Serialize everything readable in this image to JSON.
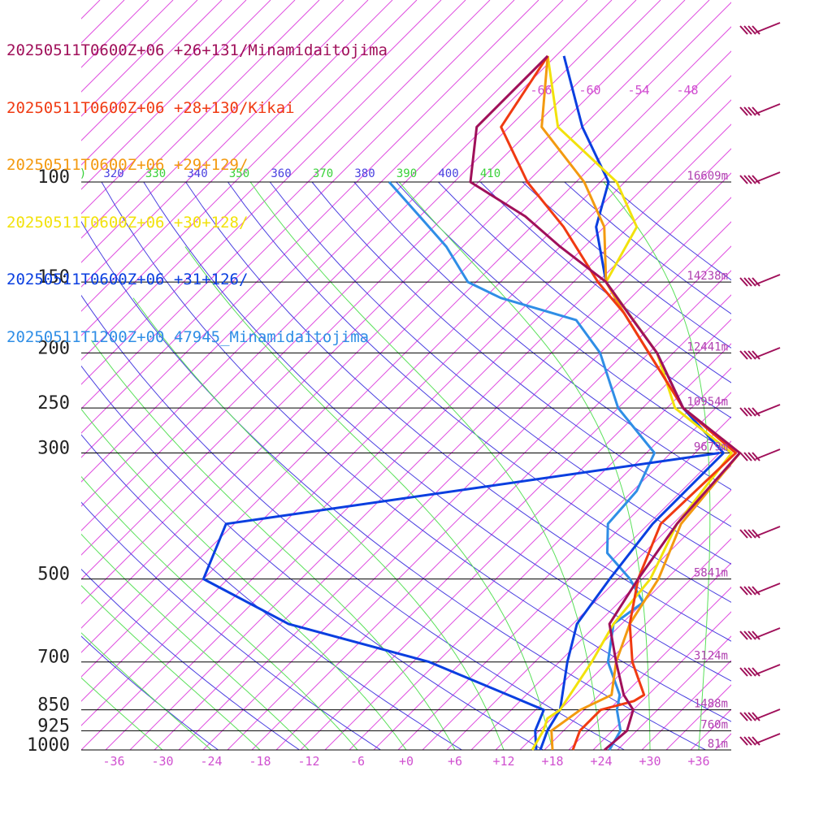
{
  "legend": [
    {
      "label": "20250511T0600Z+06 +26+131/Minamidaitojima",
      "color": "#a0105a"
    },
    {
      "label": "20250511T0600Z+06 +28+130/Kikai",
      "color": "#f03a12"
    },
    {
      "label": "20250511T0600Z+06 +29+129/",
      "color": "#f39a10"
    },
    {
      "label": "20250511T0600Z+06 +30+128/",
      "color": "#f2e20c"
    },
    {
      "label": "20250511T0600Z+06 +31+126/",
      "color": "#0a3fe0"
    },
    {
      "label": "20250511T1200Z+00 47945_Minamidaitojima",
      "color": "#2f8ee6"
    }
  ],
  "chart_data": {
    "type": "line",
    "diagram": "skew-T log-p sounding",
    "pressure_levels": [
      {
        "p": 100,
        "label": "100",
        "height": "16609m"
      },
      {
        "p": 150,
        "label": "150",
        "height": "14238m"
      },
      {
        "p": 200,
        "label": "200",
        "height": "12441m"
      },
      {
        "p": 250,
        "label": "250",
        "height": "10954m"
      },
      {
        "p": 300,
        "label": "300",
        "height": "9679m"
      },
      {
        "p": 500,
        "label": "500",
        "height": "5841m"
      },
      {
        "p": 700,
        "label": "700",
        "height": "3124m"
      },
      {
        "p": 850,
        "label": "850",
        "height": "1488m"
      },
      {
        "p": 925,
        "label": "925",
        "height": "760m"
      },
      {
        "p": 1000,
        "label": "1000",
        "height": "81m"
      }
    ],
    "temperature_ticks": [
      "-36",
      "-30",
      "-24",
      "-18",
      "-12",
      "-6",
      "+0",
      "+6",
      "+12",
      "+18",
      "+24",
      "+30",
      "+36"
    ],
    "temperature_tick_values": [
      -36,
      -30,
      -24,
      -18,
      -12,
      -6,
      0,
      6,
      12,
      18,
      24,
      30,
      36
    ],
    "upper_isotherm_labels": [
      "-66",
      "-60",
      "-54",
      "-48"
    ],
    "upper_isotherm_values": [
      -66,
      -60,
      -54,
      -48
    ],
    "theta_e_labels": [
      {
        "text": ")",
        "color": "green"
      },
      {
        "text": "320",
        "color": "blue"
      },
      {
        "text": "330",
        "color": "green"
      },
      {
        "text": "340",
        "color": "blue"
      },
      {
        "text": "350",
        "color": "green"
      },
      {
        "text": "360",
        "color": "blue"
      },
      {
        "text": "370",
        "color": "green"
      },
      {
        "text": "380",
        "color": "blue"
      },
      {
        "text": "390",
        "color": "green"
      },
      {
        "text": "400",
        "color": "blue"
      },
      {
        "text": "410",
        "color": "green"
      }
    ],
    "pressure_range_hpa": [
      100,
      1000
    ],
    "temperature_range_at_1000hpa": [
      -40,
      40
    ],
    "series": [
      {
        "name": "20250511T0600Z+06 +26+131/Minamidaitojima",
        "profile": [
          [
            1000,
            24.4
          ],
          [
            925,
            24.8
          ],
          [
            850,
            23.0
          ],
          [
            800,
            20.0
          ],
          [
            700,
            15.0
          ],
          [
            600,
            9.5
          ],
          [
            500,
            7.5
          ],
          [
            400,
            5.5
          ],
          [
            300,
            4.5
          ],
          [
            250,
            -8
          ],
          [
            200,
            -18
          ],
          [
            175,
            -25
          ],
          [
            150,
            -33
          ],
          [
            130,
            -43
          ],
          [
            115,
            -51
          ],
          [
            100,
            -62
          ],
          [
            80,
            -68
          ],
          [
            70,
            -68
          ],
          [
            60,
            -68
          ]
        ]
      },
      {
        "name": "20250511T0600Z+06 +28+130/Kikai",
        "profile": [
          [
            1000,
            20.5
          ],
          [
            925,
            19.0
          ],
          [
            870,
            19.0
          ],
          [
            850,
            19.0
          ],
          [
            820,
            22.0
          ],
          [
            800,
            22.5
          ],
          [
            700,
            17.0
          ],
          [
            600,
            12.0
          ],
          [
            500,
            7.5
          ],
          [
            400,
            3.5
          ],
          [
            300,
            4.0
          ],
          [
            250,
            -8
          ],
          [
            200,
            -19
          ],
          [
            170,
            -27
          ],
          [
            150,
            -34
          ],
          [
            120,
            -45
          ],
          [
            100,
            -55
          ],
          [
            80,
            -65
          ],
          [
            60,
            -68
          ]
        ]
      },
      {
        "name": "20250511T0600Z+06 +29+129/",
        "profile": [
          [
            1000,
            18.0
          ],
          [
            925,
            15.5
          ],
          [
            850,
            16.5
          ],
          [
            800,
            18.5
          ],
          [
            700,
            15.0
          ],
          [
            600,
            12.0
          ],
          [
            500,
            10.0
          ],
          [
            400,
            6.0
          ],
          [
            300,
            4.5
          ],
          [
            250,
            -8
          ],
          [
            200,
            -19
          ],
          [
            170,
            -27
          ],
          [
            150,
            -33
          ],
          [
            120,
            -40
          ],
          [
            100,
            -48
          ],
          [
            80,
            -60
          ],
          [
            60,
            -68
          ]
        ]
      },
      {
        "name": "20250511T0600Z+06 +30+128/",
        "profile": [
          [
            1000,
            15.5
          ],
          [
            925,
            14.5
          ],
          [
            880,
            13.5
          ],
          [
            850,
            14.0
          ],
          [
            700,
            12.0
          ],
          [
            600,
            10.0
          ],
          [
            500,
            9.0
          ],
          [
            400,
            5.5
          ],
          [
            300,
            3.5
          ],
          [
            250,
            -9
          ],
          [
            200,
            -18
          ],
          [
            150,
            -33
          ],
          [
            120,
            -36
          ],
          [
            100,
            -44
          ],
          [
            80,
            -58
          ],
          [
            60,
            -68
          ]
        ]
      },
      {
        "name": "20250511T0600Z+06 +31+126/",
        "profile": [
          [
            1000,
            16.5
          ],
          [
            925,
            15.0
          ],
          [
            850,
            14.0
          ],
          [
            700,
            9.0
          ],
          [
            600,
            5.5
          ],
          [
            500,
            4.0
          ],
          [
            400,
            2.5
          ],
          [
            300,
            2.5
          ],
          [
            250,
            -8
          ],
          [
            200,
            -18
          ],
          [
            150,
            -33
          ],
          [
            120,
            -41
          ],
          [
            100,
            -45
          ],
          [
            80,
            -55
          ],
          [
            60,
            -66
          ]
        ]
      }
    ],
    "dewpoint_series": [
      {
        "name": "20250511T0600Z+06 +31+126/",
        "profile": [
          [
            1000,
            16.0
          ],
          [
            925,
            13.5
          ],
          [
            850,
            12.0
          ],
          [
            700,
            -8
          ],
          [
            600,
            -30
          ],
          [
            500,
            -46
          ],
          [
            400,
            -50
          ],
          [
            300,
            2.0
          ]
        ]
      }
    ],
    "observed_series": {
      "name": "20250511T1200Z+00 47945_Minamidaitojima",
      "profile": [
        [
          1000,
          25.0
        ],
        [
          925,
          24.0
        ],
        [
          850,
          21.0
        ],
        [
          800,
          19.5
        ],
        [
          700,
          14.0
        ],
        [
          600,
          10.0
        ],
        [
          550,
          11.0
        ],
        [
          500,
          6.5
        ],
        [
          450,
          0.5
        ],
        [
          400,
          -3.0
        ],
        [
          350,
          -3.5
        ],
        [
          300,
          -6.0
        ],
        [
          250,
          -16.0
        ],
        [
          200,
          -25.0
        ],
        [
          175,
          -32.0
        ],
        [
          160,
          -44.0
        ],
        [
          150,
          -50.0
        ],
        [
          130,
          -57.0
        ],
        [
          115,
          -64.0
        ],
        [
          100,
          -72.0
        ]
      ]
    },
    "wind_barbs_count": 14,
    "grid": true,
    "legend_placement": "top-left"
  }
}
